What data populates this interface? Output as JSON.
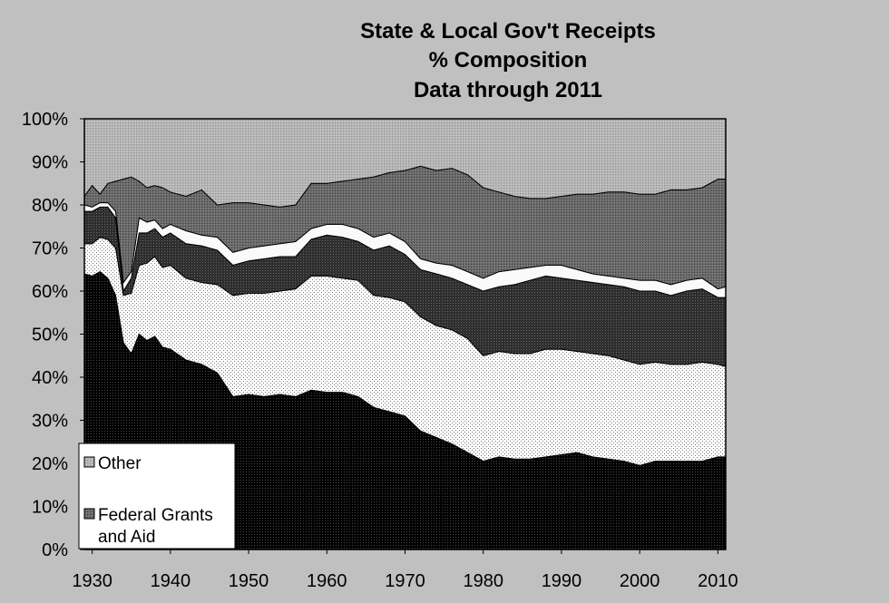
{
  "chart_data": {
    "type": "area",
    "stacked": true,
    "title_lines": [
      "State & Local Gov't Receipts",
      "% Composition",
      "Data through 2011"
    ],
    "xlabel": "",
    "ylabel": "",
    "xlim": [
      1929,
      2011
    ],
    "ylim": [
      0,
      100
    ],
    "y_unit": "%",
    "x_ticks": [
      1930,
      1940,
      1950,
      1960,
      1970,
      1980,
      1990,
      2000,
      2010
    ],
    "y_ticks": [
      0,
      10,
      20,
      30,
      40,
      50,
      60,
      70,
      80,
      90,
      100
    ],
    "y_tick_labels": [
      "0%",
      "10%",
      "20%",
      "30%",
      "40%",
      "50%",
      "60%",
      "70%",
      "80%",
      "90%",
      "100%"
    ],
    "x": [
      1929,
      1930,
      1931,
      1932,
      1933,
      1934,
      1935,
      1936,
      1937,
      1938,
      1939,
      1940,
      1942,
      1944,
      1946,
      1948,
      1950,
      1952,
      1954,
      1956,
      1958,
      1960,
      1962,
      1964,
      1966,
      1968,
      1970,
      1972,
      1974,
      1976,
      1978,
      1980,
      1982,
      1984,
      1986,
      1988,
      1990,
      1992,
      1994,
      1996,
      1998,
      2000,
      2002,
      2004,
      2006,
      2008,
      2010,
      2011
    ],
    "cumulative_boundaries": [
      [
        64,
        63.5,
        64.5,
        63,
        59,
        48,
        45.5,
        50,
        48.5,
        49.5,
        47,
        46.5,
        44,
        43,
        41,
        35.5,
        36,
        35.5,
        36,
        35.5,
        37,
        36.5,
        36.5,
        35.5,
        33,
        32,
        31,
        27.5,
        26,
        24.5,
        22.5,
        20.5,
        21.5,
        21,
        21,
        21.5,
        22,
        22.5,
        21.5,
        21,
        20.5,
        19.5,
        20.5,
        20.5,
        20.5,
        20.5,
        21.5,
        21.5
      ],
      [
        71,
        71,
        72.5,
        72,
        70,
        59,
        59.5,
        66,
        66.5,
        68,
        65.5,
        66,
        63,
        62,
        61.5,
        59,
        59.5,
        59.5,
        60,
        60.5,
        63.5,
        63.5,
        63,
        62.5,
        59,
        58.5,
        57.5,
        54,
        52,
        51,
        49,
        45,
        46,
        45.5,
        45.5,
        46.5,
        46.5,
        46,
        45.5,
        45,
        44,
        43,
        43.5,
        43,
        43,
        43.5,
        43,
        42.5
      ],
      [
        78.5,
        78.5,
        79.5,
        79.5,
        77,
        60,
        63,
        73.5,
        73.5,
        74.5,
        72.5,
        73.5,
        71,
        70.5,
        69.5,
        66,
        67,
        67.5,
        68,
        68,
        72,
        73,
        72.5,
        71.5,
        69.5,
        70.5,
        68.5,
        65,
        64,
        63,
        61.5,
        60,
        61,
        61.5,
        62.5,
        63.5,
        63,
        62.5,
        62,
        61.5,
        61,
        60,
        60,
        59,
        60,
        60.5,
        58.5,
        58.5
      ],
      [
        80,
        79.5,
        80.5,
        80.5,
        78.5,
        62,
        64.5,
        77,
        76,
        76.5,
        74.5,
        75.5,
        74,
        73,
        72.5,
        69,
        70,
        70.5,
        71,
        71.5,
        74.5,
        75.5,
        75.5,
        74.5,
        72.5,
        73.5,
        71.5,
        67.5,
        66.5,
        66,
        64.5,
        63,
        64.5,
        65,
        65.5,
        66,
        66,
        65,
        64,
        63.5,
        63,
        62.5,
        62.5,
        61.5,
        62.5,
        63,
        60.5,
        61
      ],
      [
        82,
        84.5,
        82.5,
        85,
        85.5,
        86,
        86.5,
        85.5,
        84,
        84.5,
        84,
        83,
        82,
        83.5,
        80,
        80.5,
        80.5,
        80,
        79.5,
        80,
        85,
        85,
        85.5,
        86,
        86.5,
        87.5,
        88,
        89,
        88,
        88.5,
        87,
        84,
        83,
        82,
        81.5,
        81.5,
        82,
        82.5,
        82.5,
        83,
        83,
        82.5,
        82.5,
        83.5,
        83.5,
        84,
        86,
        86
      ],
      [
        100,
        100,
        100,
        100,
        100,
        100,
        100,
        100,
        100,
        100,
        100,
        100,
        100,
        100,
        100,
        100,
        100,
        100,
        100,
        100,
        100,
        100,
        100,
        100,
        100,
        100,
        100,
        100,
        100,
        100,
        100,
        100,
        100,
        100,
        100,
        100,
        100,
        100,
        100,
        100,
        100,
        100,
        100,
        100,
        100,
        100,
        100,
        100
      ]
    ],
    "legend": {
      "placement": "bottom-left",
      "entries": [
        {
          "label": "Other",
          "series_index": 5
        },
        {
          "label": "Federal Grants",
          "label_line2": "and Aid",
          "series_index": 4
        }
      ]
    },
    "grid": false
  }
}
